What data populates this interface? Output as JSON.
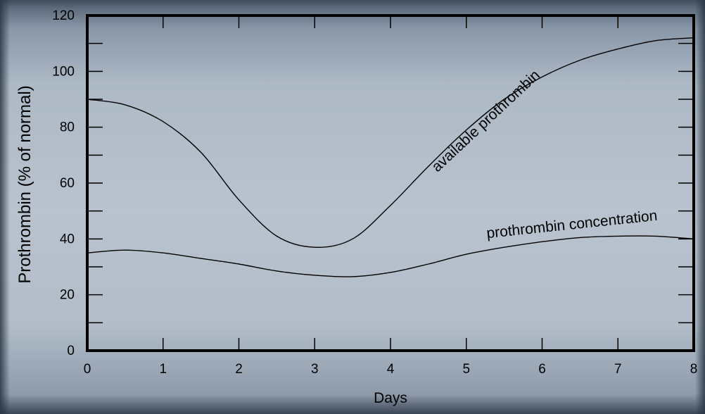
{
  "chart_data": {
    "type": "line",
    "title": "",
    "xlabel": "Days",
    "ylabel": "Prothrombin (% of normal)",
    "xlim": [
      0,
      8
    ],
    "ylim": [
      0,
      120
    ],
    "x_ticks": [
      "0",
      "1",
      "2",
      "3",
      "4",
      "5",
      "6",
      "7",
      "8"
    ],
    "y_ticks": [
      "0",
      "20",
      "40",
      "60",
      "80",
      "100",
      "120"
    ],
    "grid": false,
    "legend": "none",
    "series": [
      {
        "name": "available prothrombin",
        "x": [
          0,
          0.5,
          1,
          1.5,
          2,
          2.5,
          3,
          3.5,
          4,
          4.5,
          5,
          5.5,
          6,
          6.5,
          7,
          7.5,
          8
        ],
        "y": [
          90,
          88,
          82,
          71,
          54,
          41,
          37,
          40,
          52,
          66,
          79,
          90,
          98,
          104,
          108,
          111,
          112
        ]
      },
      {
        "name": "prothrombin concentration",
        "x": [
          0,
          0.5,
          1,
          1.5,
          2,
          2.5,
          3,
          3.5,
          4,
          4.5,
          5,
          5.5,
          6,
          6.5,
          7,
          7.5,
          8
        ],
        "y": [
          35,
          36,
          35,
          33,
          31,
          28.5,
          27,
          26.5,
          28,
          31,
          34.5,
          37,
          39,
          40.5,
          41,
          41,
          40
        ]
      }
    ],
    "annotations": [
      {
        "text": "available prothrombin",
        "x": 5.3,
        "y": 81,
        "angle": -43
      },
      {
        "text": "prothrombin concentration",
        "x": 6.4,
        "y": 43.5,
        "angle": -6
      }
    ]
  }
}
